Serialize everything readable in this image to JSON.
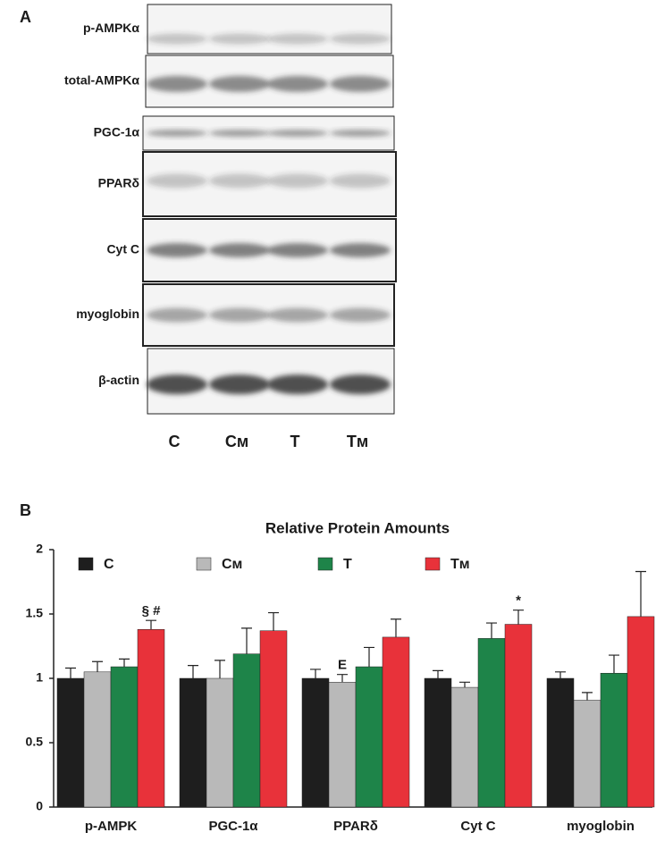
{
  "panel_a": {
    "label": "A",
    "rows": [
      "p-AMPKα",
      "total-AMPKα",
      "PGC-1α",
      "PPARδ",
      "Cyt C",
      "myoglobin",
      "β-actin"
    ],
    "lanes": [
      "C",
      "Cᴍ",
      "T",
      "Tᴍ"
    ]
  },
  "panel_b_label": "B",
  "chart_data": {
    "type": "bar",
    "title": "Relative Protein Amounts",
    "categories": [
      "p-AMPK",
      "PGC-1α",
      "PPARδ",
      "Cyt C",
      "myoglobin"
    ],
    "series": [
      {
        "name": "C",
        "color": "#1e1e1e",
        "values": [
          1.0,
          1.0,
          1.0,
          1.0,
          1.0
        ],
        "errors": [
          0.08,
          0.1,
          0.07,
          0.06,
          0.05
        ]
      },
      {
        "name": "Cᴍ",
        "color": "#b9b9b9",
        "values": [
          1.05,
          1.0,
          0.97,
          0.93,
          0.83
        ],
        "errors": [
          0.08,
          0.14,
          0.06,
          0.04,
          0.06
        ]
      },
      {
        "name": "T",
        "color": "#1e8449",
        "values": [
          1.09,
          1.19,
          1.09,
          1.31,
          1.04
        ],
        "errors": [
          0.06,
          0.2,
          0.15,
          0.12,
          0.14
        ]
      },
      {
        "name": "Tᴍ",
        "color": "#e8323a",
        "values": [
          1.38,
          1.37,
          1.32,
          1.42,
          1.48
        ],
        "errors": [
          0.07,
          0.14,
          0.14,
          0.11,
          0.35
        ]
      }
    ],
    "ylim": [
      0,
      2
    ],
    "yticks": [
      0,
      0.5,
      1,
      1.5,
      2
    ],
    "annotations": [
      {
        "text": "§ #",
        "category": 0,
        "series": 3
      },
      {
        "text": "E",
        "category": 2,
        "series": 1
      },
      {
        "text": "*",
        "category": 3,
        "series": 3
      }
    ]
  }
}
